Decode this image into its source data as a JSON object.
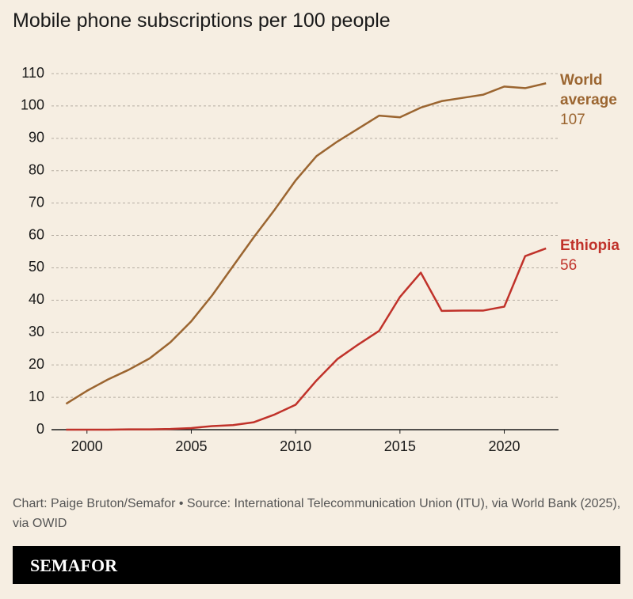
{
  "chart_data": {
    "type": "line",
    "title": "Mobile phone subscriptions per 100 people",
    "x": [
      1999,
      2000,
      2001,
      2002,
      2003,
      2004,
      2005,
      2006,
      2007,
      2008,
      2009,
      2010,
      2011,
      2012,
      2013,
      2014,
      2015,
      2016,
      2017,
      2018,
      2019,
      2020,
      2021,
      2022
    ],
    "series": [
      {
        "name": "World average",
        "color": "#9b6530",
        "values": [
          8,
          12,
          15.5,
          18.5,
          22,
          27,
          33.5,
          41.5,
          50.5,
          59.5,
          68,
          77,
          84.5,
          89,
          93,
          97,
          96.5,
          99.5,
          101.5,
          102.5,
          103.5,
          106,
          105.5,
          107
        ]
      },
      {
        "name": "Ethiopia",
        "color": "#c0322a",
        "values": [
          0,
          0,
          0,
          0.1,
          0.1,
          0.2,
          0.5,
          1.1,
          1.4,
          2.3,
          4.7,
          7.7,
          15.2,
          21.8,
          26.3,
          30.5,
          41,
          48.5,
          36.7,
          36.8,
          36.8,
          38,
          53.6,
          56
        ]
      }
    ],
    "xlim": [
      1998.3,
      2022.6
    ],
    "xticks": [
      2000,
      2005,
      2010,
      2015,
      2020
    ],
    "ylim": [
      0,
      110
    ],
    "yticks": [
      0,
      10,
      20,
      30,
      40,
      50,
      60,
      70,
      80,
      90,
      100,
      110
    ],
    "grid": true,
    "source": "Chart: Paige Bruton/Semafor • Source: International Telecommunication Union (ITU), via World Bank (2025), via OWID",
    "brand": "SEMAFOR"
  }
}
